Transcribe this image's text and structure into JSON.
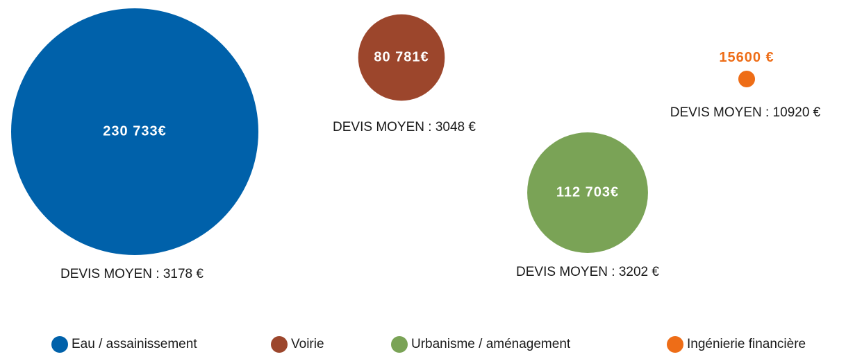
{
  "chart_data": {
    "type": "bubble",
    "categories": [
      "Eau / assainissement",
      "Voirie",
      "Urbanisme / aménagement",
      "Ingénierie financière"
    ],
    "values": [
      230733,
      80781,
      112703,
      15600
    ],
    "value_labels": [
      "230 733€",
      "80 781€",
      "112 703€",
      "15600 €"
    ],
    "colors": [
      "#0061aa",
      "#9c462c",
      "#7aa356",
      "#ee6d17"
    ],
    "annotations": [
      "DEVIS MOYEN : 3178 €",
      "DEVIS MOYEN : 3048 €",
      "DEVIS MOYEN : 3202 €",
      "DEVIS MOYEN : 10920 €"
    ]
  }
}
